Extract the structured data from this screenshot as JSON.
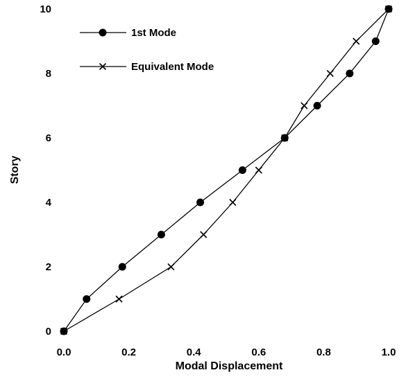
{
  "chart_data": {
    "type": "line",
    "title": "",
    "xlabel": "Modal Displacement",
    "ylabel": "Story",
    "xlim": [
      0.0,
      1.0
    ],
    "ylim": [
      0,
      10
    ],
    "xticks": [
      "0.0",
      "0.2",
      "0.4",
      "0.6",
      "0.8",
      "1.0"
    ],
    "yticks": [
      "0",
      "2",
      "4",
      "6",
      "8",
      "10"
    ],
    "grid": false,
    "legend_position": "top-left",
    "series": [
      {
        "name": "1st Mode",
        "marker": "filled-circle",
        "color": "#000000",
        "x": [
          0.0,
          0.07,
          0.18,
          0.3,
          0.42,
          0.55,
          0.68,
          0.78,
          0.88,
          0.96,
          1.0
        ],
        "y": [
          0,
          1,
          2,
          3,
          4,
          5,
          6,
          7,
          8,
          9,
          10
        ]
      },
      {
        "name": "Equivalent Mode",
        "marker": "x",
        "color": "#000000",
        "x": [
          0.0,
          0.17,
          0.33,
          0.43,
          0.52,
          0.6,
          0.68,
          0.74,
          0.82,
          0.9,
          1.0
        ],
        "y": [
          0,
          1,
          2,
          3,
          4,
          5,
          6,
          7,
          8,
          9,
          10
        ]
      }
    ]
  }
}
